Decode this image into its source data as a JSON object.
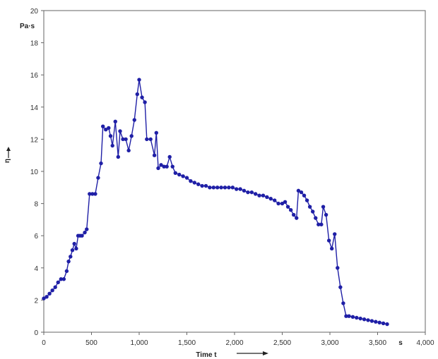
{
  "chart_data": {
    "type": "line",
    "title": "",
    "xlabel": "Time t",
    "ylabel": "η",
    "x_unit": "s",
    "y_unit": "Pa·s",
    "xlim": [
      0,
      4000
    ],
    "ylim": [
      0,
      20
    ],
    "x_ticks": [
      0,
      500,
      1000,
      1500,
      2000,
      2500,
      3000,
      3500,
      4000
    ],
    "x_tick_labels": [
      "0",
      "500",
      "1,000",
      "1,500",
      "2,000",
      "2,500",
      "3,000",
      "3,500",
      "4,000"
    ],
    "y_ticks": [
      0,
      2,
      4,
      6,
      8,
      10,
      12,
      14,
      16,
      18,
      20
    ],
    "y_tick_labels": [
      "0",
      "2",
      "4",
      "6",
      "8",
      "10",
      "12",
      "14",
      "16",
      "18",
      "20"
    ],
    "grid": false,
    "series": [
      {
        "color": "#1f1fa6",
        "points": [
          [
            0,
            2.1
          ],
          [
            30,
            2.2
          ],
          [
            60,
            2.4
          ],
          [
            90,
            2.6
          ],
          [
            120,
            2.8
          ],
          [
            150,
            3.1
          ],
          [
            180,
            3.3
          ],
          [
            210,
            3.3
          ],
          [
            240,
            3.8
          ],
          [
            260,
            4.4
          ],
          [
            280,
            4.7
          ],
          [
            300,
            5.1
          ],
          [
            320,
            5.5
          ],
          [
            340,
            5.2
          ],
          [
            360,
            6.0
          ],
          [
            380,
            6.0
          ],
          [
            400,
            6.0
          ],
          [
            430,
            6.2
          ],
          [
            450,
            6.4
          ],
          [
            480,
            8.6
          ],
          [
            510,
            8.6
          ],
          [
            540,
            8.6
          ],
          [
            570,
            9.6
          ],
          [
            600,
            10.5
          ],
          [
            620,
            12.8
          ],
          [
            650,
            12.6
          ],
          [
            680,
            12.7
          ],
          [
            700,
            12.2
          ],
          [
            720,
            11.6
          ],
          [
            750,
            13.1
          ],
          [
            780,
            10.9
          ],
          [
            800,
            12.5
          ],
          [
            830,
            12.0
          ],
          [
            860,
            12.0
          ],
          [
            890,
            11.3
          ],
          [
            920,
            12.2
          ],
          [
            950,
            13.2
          ],
          [
            980,
            14.8
          ],
          [
            1000,
            15.7
          ],
          [
            1030,
            14.6
          ],
          [
            1060,
            14.3
          ],
          [
            1080,
            12.0
          ],
          [
            1120,
            12.0
          ],
          [
            1160,
            11.0
          ],
          [
            1180,
            12.4
          ],
          [
            1200,
            10.2
          ],
          [
            1230,
            10.4
          ],
          [
            1260,
            10.3
          ],
          [
            1290,
            10.3
          ],
          [
            1320,
            10.9
          ],
          [
            1350,
            10.3
          ],
          [
            1380,
            9.9
          ],
          [
            1420,
            9.8
          ],
          [
            1460,
            9.7
          ],
          [
            1500,
            9.6
          ],
          [
            1540,
            9.4
          ],
          [
            1580,
            9.3
          ],
          [
            1620,
            9.2
          ],
          [
            1660,
            9.1
          ],
          [
            1700,
            9.1
          ],
          [
            1740,
            9.0
          ],
          [
            1780,
            9.0
          ],
          [
            1820,
            9.0
          ],
          [
            1860,
            9.0
          ],
          [
            1900,
            9.0
          ],
          [
            1940,
            9.0
          ],
          [
            1980,
            9.0
          ],
          [
            2020,
            8.9
          ],
          [
            2060,
            8.9
          ],
          [
            2100,
            8.8
          ],
          [
            2140,
            8.7
          ],
          [
            2180,
            8.7
          ],
          [
            2220,
            8.6
          ],
          [
            2260,
            8.5
          ],
          [
            2300,
            8.5
          ],
          [
            2340,
            8.4
          ],
          [
            2380,
            8.3
          ],
          [
            2420,
            8.2
          ],
          [
            2460,
            8.0
          ],
          [
            2500,
            8.0
          ],
          [
            2530,
            8.1
          ],
          [
            2560,
            7.8
          ],
          [
            2590,
            7.6
          ],
          [
            2620,
            7.3
          ],
          [
            2650,
            7.1
          ],
          [
            2670,
            8.8
          ],
          [
            2700,
            8.7
          ],
          [
            2730,
            8.5
          ],
          [
            2760,
            8.2
          ],
          [
            2790,
            7.8
          ],
          [
            2820,
            7.5
          ],
          [
            2850,
            7.1
          ],
          [
            2880,
            6.7
          ],
          [
            2910,
            6.7
          ],
          [
            2930,
            7.8
          ],
          [
            2960,
            7.3
          ],
          [
            2990,
            5.7
          ],
          [
            3020,
            5.2
          ],
          [
            3050,
            6.1
          ],
          [
            3080,
            4.0
          ],
          [
            3110,
            2.8
          ],
          [
            3140,
            1.8
          ],
          [
            3170,
            1.0
          ],
          [
            3200,
            1.0
          ],
          [
            3240,
            0.95
          ],
          [
            3280,
            0.9
          ],
          [
            3320,
            0.85
          ],
          [
            3360,
            0.8
          ],
          [
            3400,
            0.75
          ],
          [
            3440,
            0.7
          ],
          [
            3480,
            0.65
          ],
          [
            3520,
            0.6
          ],
          [
            3560,
            0.55
          ],
          [
            3600,
            0.5
          ]
        ]
      }
    ]
  }
}
